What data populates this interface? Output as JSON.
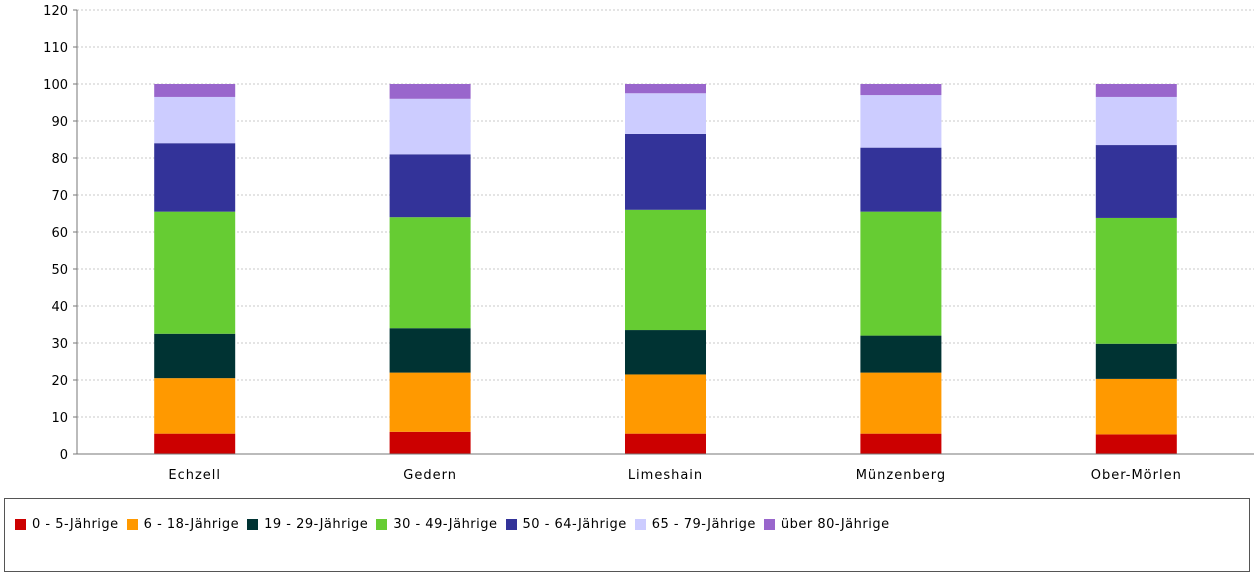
{
  "chart_data": {
    "type": "bar",
    "stacked": true,
    "categories": [
      "Echzell",
      "Gedern",
      "Limeshain",
      "Münzenberg",
      "Ober-Mörlen"
    ],
    "series": [
      {
        "name": "0 - 5-Jährige",
        "color": "#cc0000",
        "values": [
          5.5,
          6.0,
          5.5,
          5.5,
          5.3
        ]
      },
      {
        "name": "6 - 18-Jährige",
        "color": "#ff9900",
        "values": [
          15.0,
          16.0,
          16.0,
          16.5,
          15.0
        ]
      },
      {
        "name": "19 - 29-Jährige",
        "color": "#003333",
        "values": [
          12.0,
          12.0,
          12.0,
          10.0,
          9.5
        ]
      },
      {
        "name": "30 - 49-Jährige",
        "color": "#66cc33",
        "values": [
          33.0,
          30.0,
          32.5,
          33.5,
          34.0
        ]
      },
      {
        "name": "50 - 64-Jährige",
        "color": "#333399",
        "values": [
          18.5,
          17.0,
          20.5,
          17.3,
          19.7
        ]
      },
      {
        "name": "65 - 79-Jährige",
        "color": "#ccccff",
        "values": [
          12.5,
          15.0,
          11.0,
          14.2,
          13.0
        ]
      },
      {
        "name": "über 80-Jährige",
        "color": "#9966cc",
        "values": [
          3.5,
          4.0,
          2.5,
          3.0,
          3.5
        ]
      }
    ],
    "ylim": [
      0,
      120
    ],
    "yticks": [
      "0",
      "10",
      "20",
      "30",
      "40",
      "50",
      "60",
      "70",
      "80",
      "90",
      "100",
      "110",
      "120"
    ],
    "grid": true,
    "legend_position": "bottom",
    "title": "",
    "xlabel": "",
    "ylabel": ""
  }
}
